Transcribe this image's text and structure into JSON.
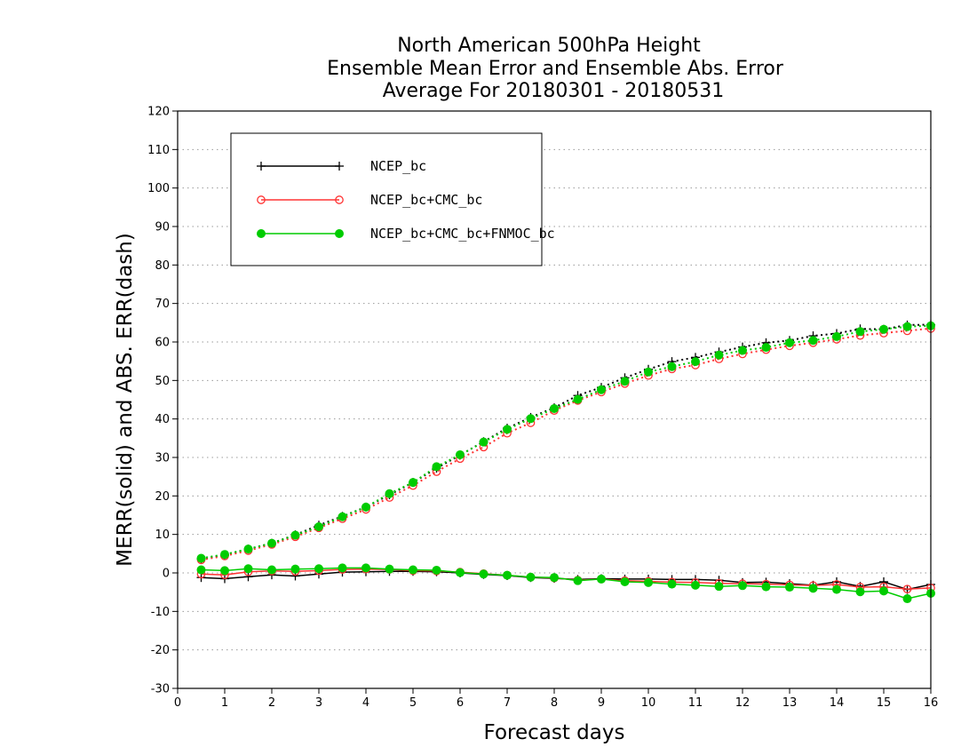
{
  "chart_data": {
    "type": "line",
    "title_lines": [
      "North American 500hPa Height",
      "Ensemble Mean Error and Ensemble Abs. Error",
      "Average For 20180301 - 20180531"
    ],
    "xlabel": "Forecast days",
    "ylabel": "MERR(solid) and ABS. ERR(dash)",
    "xlim": [
      0,
      16
    ],
    "ylim": [
      -30,
      120
    ],
    "x_ticks": [
      0,
      1,
      2,
      3,
      4,
      5,
      6,
      7,
      8,
      9,
      10,
      11,
      12,
      13,
      14,
      15,
      16
    ],
    "y_ticks": [
      -30,
      -20,
      -10,
      0,
      10,
      20,
      30,
      40,
      50,
      60,
      70,
      80,
      90,
      100,
      110,
      120
    ],
    "grid": "dotted horizontal",
    "legend_position": "top-left",
    "x": [
      0.5,
      1,
      1.5,
      2,
      2.5,
      3,
      3.5,
      4,
      4.5,
      5,
      5.5,
      6,
      6.5,
      7,
      7.5,
      8,
      8.5,
      9,
      9.5,
      10,
      10.5,
      11,
      11.5,
      12,
      12.5,
      13,
      13.5,
      14,
      14.5,
      15,
      15.5,
      16
    ],
    "series": [
      {
        "name": "NCEP_bc",
        "color": "#000000",
        "marker": "plus",
        "merr": [
          -1.2,
          -1.5,
          -1.0,
          -0.5,
          -0.8,
          -0.3,
          0.2,
          0.3,
          0.4,
          0.4,
          0.3,
          0.0,
          -0.4,
          -0.7,
          -1.2,
          -1.4,
          -1.7,
          -1.5,
          -1.6,
          -1.6,
          -1.7,
          -1.7,
          -1.9,
          -2.5,
          -2.4,
          -2.8,
          -3.2,
          -2.3,
          -3.5,
          -2.3,
          -4.3,
          -3.0
        ],
        "abs_err": [
          3.6,
          4.7,
          6.2,
          7.7,
          9.9,
          12.4,
          14.7,
          17.1,
          20.3,
          23.5,
          27.2,
          30.6,
          34.1,
          37.6,
          40.4,
          42.9,
          46.1,
          48.2,
          50.7,
          52.9,
          54.9,
          56.0,
          57.4,
          58.7,
          59.8,
          60.4,
          61.6,
          62.2,
          63.4,
          63.3,
          64.4,
          64.5
        ]
      },
      {
        "name": "NCEP_bc+CMC_bc",
        "color": "#ff3333",
        "marker": "open-circle",
        "merr": [
          -0.3,
          -0.5,
          0.3,
          0.5,
          0.4,
          0.6,
          0.9,
          1.0,
          0.9,
          0.6,
          0.5,
          0.2,
          -0.2,
          -0.6,
          -1.1,
          -1.3,
          -1.9,
          -1.6,
          -2.0,
          -2.2,
          -2.4,
          -2.5,
          -2.7,
          -2.8,
          -2.9,
          -3.1,
          -3.3,
          -3.0,
          -3.7,
          -3.6,
          -4.2,
          -3.9
        ],
        "abs_err": [
          3.4,
          4.4,
          5.8,
          7.4,
          9.4,
          11.7,
          14.1,
          16.5,
          19.6,
          22.7,
          26.3,
          29.7,
          32.7,
          36.3,
          39.0,
          42.2,
          44.8,
          47.0,
          49.2,
          51.3,
          53.0,
          54.0,
          55.6,
          56.9,
          58.0,
          59.0,
          59.8,
          60.7,
          61.7,
          62.3,
          62.9,
          63.5
        ]
      },
      {
        "name": "NCEP_bc+CMC_bc+FNMOC_bc",
        "color": "#00cc00",
        "marker": "filled-circle",
        "merr": [
          0.8,
          0.6,
          1.1,
          0.8,
          1.0,
          1.1,
          1.3,
          1.3,
          1.0,
          0.8,
          0.7,
          0.1,
          -0.3,
          -0.6,
          -1.1,
          -1.2,
          -2.0,
          -1.6,
          -2.3,
          -2.5,
          -2.9,
          -3.2,
          -3.5,
          -3.3,
          -3.6,
          -3.7,
          -4.0,
          -4.3,
          -4.9,
          -4.7,
          -6.7,
          -5.3
        ],
        "abs_err": [
          3.8,
          4.8,
          6.2,
          7.7,
          9.8,
          12.0,
          14.6,
          17.1,
          20.6,
          23.5,
          27.6,
          30.7,
          34.0,
          37.3,
          40.1,
          42.7,
          45.1,
          47.6,
          49.8,
          52.2,
          53.6,
          54.9,
          56.6,
          57.8,
          58.6,
          59.8,
          60.4,
          61.4,
          62.7,
          63.3,
          64.0,
          64.2
        ]
      }
    ]
  }
}
